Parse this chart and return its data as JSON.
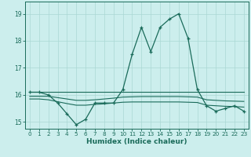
{
  "title": "",
  "xlabel": "Humidex (Indice chaleur)",
  "bg_color": "#cceeed",
  "grid_color": "#aad8d4",
  "line_color": "#1a6b5a",
  "xlim": [
    -0.5,
    23.5
  ],
  "ylim": [
    14.75,
    19.45
  ],
  "yticks": [
    15,
    16,
    17,
    18,
    19
  ],
  "xticks": [
    0,
    1,
    2,
    3,
    4,
    5,
    6,
    7,
    8,
    9,
    10,
    11,
    12,
    13,
    14,
    15,
    16,
    17,
    18,
    19,
    20,
    21,
    22,
    23
  ],
  "series_main": {
    "x": [
      0,
      1,
      2,
      3,
      4,
      5,
      6,
      7,
      8,
      9,
      10,
      11,
      12,
      13,
      14,
      15,
      16,
      17,
      18,
      19,
      20,
      21,
      22,
      23
    ],
    "y": [
      16.1,
      16.1,
      16.0,
      15.7,
      15.3,
      14.9,
      15.1,
      15.7,
      15.7,
      15.7,
      16.2,
      17.5,
      18.5,
      17.6,
      18.5,
      18.8,
      19.0,
      18.1,
      16.2,
      15.6,
      15.4,
      15.5,
      15.6,
      15.4
    ]
  },
  "series_flat_top": {
    "x": [
      0,
      23
    ],
    "y": [
      16.1,
      16.1
    ]
  },
  "series_mid": {
    "x": [
      0,
      1,
      2,
      3,
      4,
      5,
      6,
      7,
      8,
      9,
      10,
      11,
      12,
      13,
      14,
      15,
      16,
      17,
      18,
      19,
      20,
      21,
      22,
      23
    ],
    "y": [
      15.95,
      15.95,
      15.95,
      15.9,
      15.85,
      15.8,
      15.8,
      15.82,
      15.85,
      15.88,
      15.92,
      15.93,
      15.94,
      15.94,
      15.94,
      15.94,
      15.94,
      15.93,
      15.92,
      15.82,
      15.8,
      15.78,
      15.77,
      15.76
    ]
  },
  "series_low": {
    "x": [
      0,
      1,
      2,
      3,
      4,
      5,
      6,
      7,
      8,
      9,
      10,
      11,
      12,
      13,
      14,
      15,
      16,
      17,
      18,
      19,
      20,
      21,
      22,
      23
    ],
    "y": [
      15.85,
      15.85,
      15.82,
      15.75,
      15.68,
      15.62,
      15.62,
      15.65,
      15.67,
      15.7,
      15.73,
      15.74,
      15.74,
      15.74,
      15.74,
      15.74,
      15.74,
      15.73,
      15.72,
      15.62,
      15.6,
      15.58,
      15.57,
      15.55
    ]
  }
}
